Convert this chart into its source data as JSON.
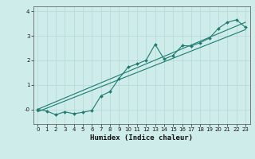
{
  "title": "",
  "xlabel": "Humidex (Indice chaleur)",
  "ylabel": "",
  "bg_color": "#ceecea",
  "grid_color": "#b8dbd9",
  "line_color": "#1e7b70",
  "xlim": [
    -0.5,
    23.5
  ],
  "ylim": [
    -0.6,
    4.2
  ],
  "yticks": [
    0,
    1,
    2,
    3,
    4
  ],
  "ytick_labels": [
    "-0",
    "1",
    "2",
    "3",
    "4"
  ],
  "xticks": [
    0,
    1,
    2,
    3,
    4,
    5,
    6,
    7,
    8,
    9,
    10,
    11,
    12,
    13,
    14,
    15,
    16,
    17,
    18,
    19,
    20,
    21,
    22,
    23
  ],
  "line1_x": [
    0,
    1,
    2,
    3,
    4,
    5,
    6,
    7,
    8,
    9,
    10,
    11,
    12,
    13,
    14,
    15,
    16,
    17,
    18,
    19,
    20,
    21,
    22,
    23
  ],
  "line1_y": [
    0.0,
    -0.07,
    -0.22,
    -0.1,
    -0.18,
    -0.12,
    -0.05,
    0.55,
    0.72,
    1.25,
    1.72,
    1.85,
    2.0,
    2.65,
    2.05,
    2.2,
    2.6,
    2.58,
    2.72,
    2.9,
    3.3,
    3.55,
    3.65,
    3.35
  ],
  "line2_x": [
    0,
    23
  ],
  "line2_y": [
    0.0,
    3.55
  ],
  "line3_x": [
    0,
    23
  ],
  "line3_y": [
    -0.1,
    3.25
  ],
  "tick_fontsize": 5.0,
  "label_fontsize": 6.5,
  "marker_size": 2.0,
  "line_width": 0.9
}
